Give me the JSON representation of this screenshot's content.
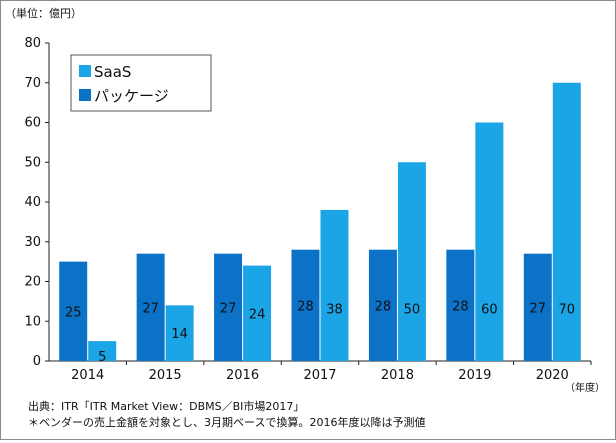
{
  "chart_data": {
    "type": "bar",
    "unit_label": "（単位：億円）",
    "x_unit_label": "（年度）",
    "categories": [
      "2014",
      "2015",
      "2016",
      "2017",
      "2018",
      "2019",
      "2020"
    ],
    "ylim": [
      0,
      80
    ],
    "y_ticks": [
      0,
      10,
      20,
      30,
      40,
      50,
      60,
      70,
      80
    ],
    "grid": false,
    "legend_position": "top-left",
    "series": [
      {
        "name": "パッケージ",
        "color": "#0b72c8",
        "values": [
          25,
          27,
          27,
          28,
          28,
          28,
          27
        ],
        "value_labels": [
          "25",
          "27",
          "27",
          "28",
          "28",
          "28",
          "27"
        ],
        "label_position": "center"
      },
      {
        "name": "SaaS",
        "color": "#1ba5e6",
        "values": [
          5,
          14,
          24,
          38,
          50,
          60,
          70
        ],
        "value_labels": [
          "5",
          "14",
          "24",
          "38",
          "50",
          "60",
          "70"
        ],
        "label_position": "bottom-third"
      }
    ],
    "legend_order": [
      "SaaS",
      "パッケージ"
    ]
  },
  "footnotes": {
    "source": "出典：ITR「ITR Market View：DBMS／BI市場2017」",
    "note": "＊ベンダーの売上金額を対象とし、3月期ベースで換算。2016年度以降は予測値"
  }
}
